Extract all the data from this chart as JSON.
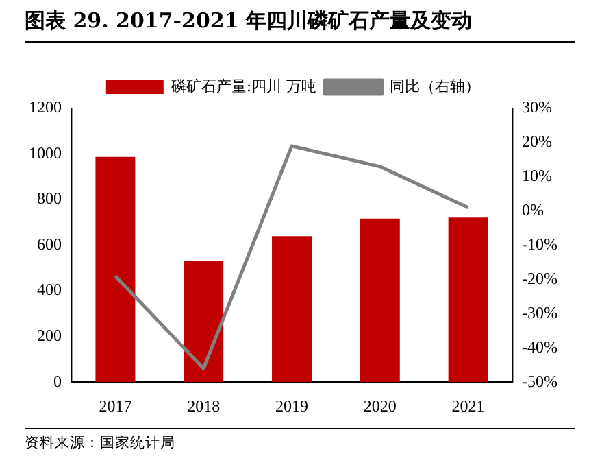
{
  "chart_data": {
    "type": "bar",
    "title": "图表 29. 2017-2021 年四川磷矿石产量及变动",
    "categories": [
      "2017",
      "2018",
      "2019",
      "2020",
      "2021"
    ],
    "series": [
      {
        "name": "磷矿石产量:四川 万吨",
        "color": "#c00000",
        "values": [
          987,
          532,
          640,
          717,
          721
        ]
      },
      {
        "name": "同比（右轴）",
        "type": "line",
        "axis": "y2",
        "color": "#808080",
        "values": [
          -19,
          -46,
          19,
          13,
          1
        ]
      }
    ],
    "ylim": [
      0,
      1200
    ],
    "yticks": [
      0,
      200,
      400,
      600,
      800,
      1000,
      1200
    ],
    "y2lim": [
      -50,
      30
    ],
    "y2ticks": [
      {
        "value": -50,
        "label": "-50%"
      },
      {
        "value": -40,
        "label": "-40%"
      },
      {
        "value": -30,
        "label": "-30%"
      },
      {
        "value": -20,
        "label": "-20%"
      },
      {
        "value": -10,
        "label": "-10%"
      },
      {
        "value": 0,
        "label": "0%"
      },
      {
        "value": 10,
        "label": "10%"
      },
      {
        "value": 20,
        "label": "20%"
      },
      {
        "value": 30,
        "label": "30%"
      }
    ],
    "legend": "top",
    "grid": false,
    "marker": "none",
    "line_style": "solid",
    "annotations": [
      "资料来源：国家统计局"
    ]
  }
}
